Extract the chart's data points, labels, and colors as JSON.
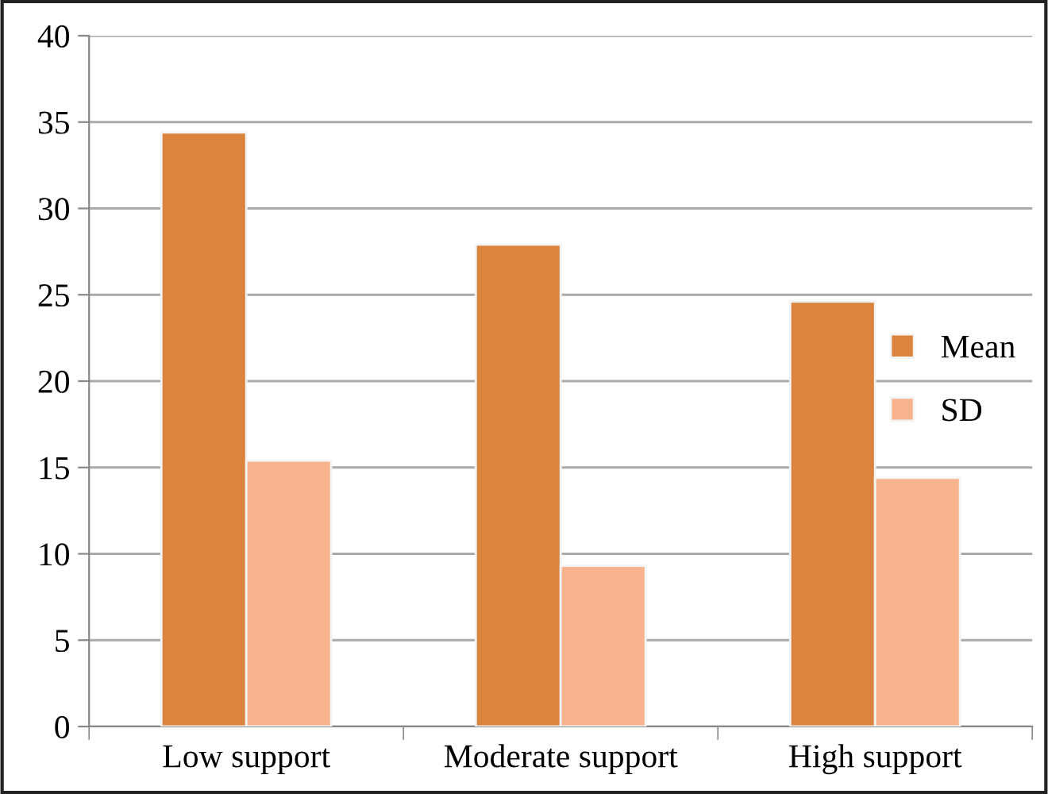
{
  "chart_data": {
    "type": "bar",
    "categories": [
      "Low support",
      "Moderate support",
      "High support"
    ],
    "series": [
      {
        "name": "Mean",
        "color": "#db843d",
        "values": [
          34.4,
          27.9,
          24.6
        ]
      },
      {
        "name": "SD",
        "color": "#f7b38e",
        "values": [
          15.4,
          9.3,
          14.4
        ]
      }
    ],
    "ylim": [
      0,
      40
    ],
    "yticks": [
      0,
      5,
      10,
      15,
      20,
      25,
      30,
      35,
      40
    ],
    "grid": "y",
    "legend": "right"
  }
}
